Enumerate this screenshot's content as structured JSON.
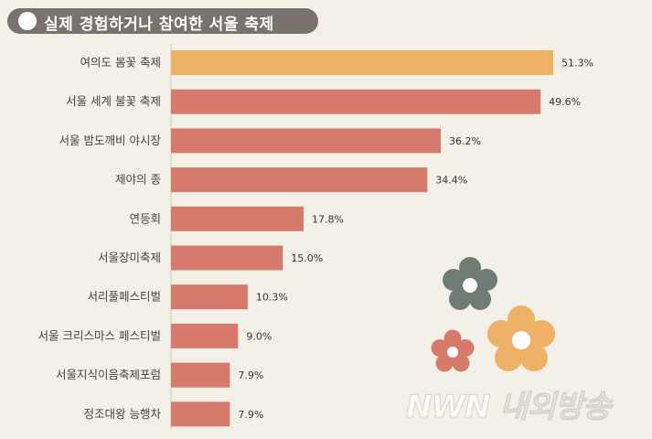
{
  "title": "실제 경험하거나 참여한 서울 축제",
  "colors": {
    "highlight": "#efb165",
    "bar": "#d67b6c",
    "title_bg": "#7a7270",
    "background": "#f3f0e8"
  },
  "chart_data": {
    "type": "bar",
    "orientation": "horizontal",
    "title": "실제 경험하거나 참여한 서울 축제",
    "categories": [
      "여의도 봄꽃 축제",
      "서울 세계 불꽃 축제",
      "서울 밤도깨비 야시장",
      "제야의 종",
      "연등회",
      "서울장미축제",
      "서리풀페스티벌",
      "서울 크리스마스 페스티벌",
      "서울지식이음축제포럼",
      "정조대왕 능행차"
    ],
    "values": [
      51.3,
      49.6,
      36.2,
      34.4,
      17.8,
      15.0,
      10.3,
      9.0,
      7.9,
      7.9
    ],
    "value_labels": [
      "51.3%",
      "49.6%",
      "36.2%",
      "34.4%",
      "17.8%",
      "15.0%",
      "10.3%",
      "9.0%",
      "7.9%",
      "7.9%"
    ],
    "highlight_index": 0,
    "unit": "%",
    "xlim": [
      0,
      51.3
    ],
    "grid": false,
    "legend": "none"
  },
  "decoration": {
    "flowers": [
      "gray-flower-icon",
      "orange-flower-icon",
      "red-flower-icon"
    ],
    "watermark_text": "NWN 내외방송"
  }
}
